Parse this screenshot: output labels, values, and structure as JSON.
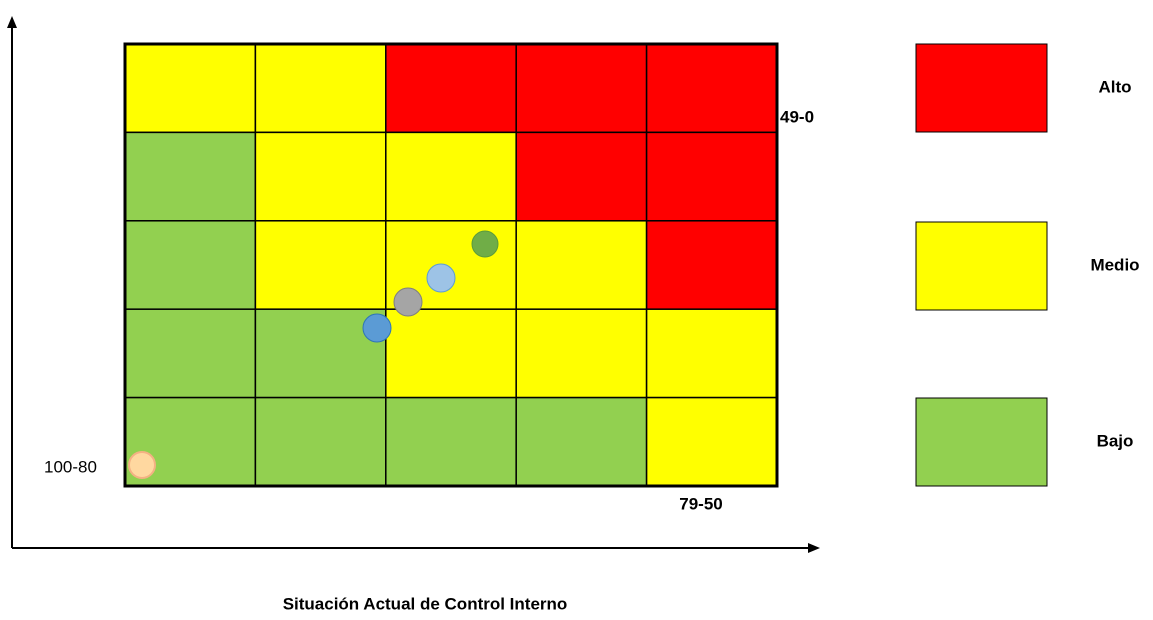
{
  "grid": {
    "rows": [
      [
        "#ffff00",
        "#ffff00",
        "#ff0000",
        "#ff0000",
        "#ff0000"
      ],
      [
        "#92d050",
        "#ffff00",
        "#ffff00",
        "#ff0000",
        "#ff0000"
      ],
      [
        "#92d050",
        "#ffff00",
        "#ffff00",
        "#ffff00",
        "#ff0000"
      ],
      [
        "#92d050",
        "#92d050",
        "#ffff00",
        "#ffff00",
        "#ffff00"
      ],
      [
        "#92d050",
        "#92d050",
        "#92d050",
        "#92d050",
        "#ffff00"
      ]
    ]
  },
  "labels": {
    "top_right": "49-0",
    "bottom_right": "79-50",
    "bottom_left": "100-80"
  },
  "legend": [
    {
      "label": "Alto",
      "color": "#ff0000"
    },
    {
      "label": "Medio",
      "color": "#ffff00"
    },
    {
      "label": "Bajo",
      "color": "#92d050"
    }
  ],
  "axis_title": "Situación Actual de Control Interno"
}
